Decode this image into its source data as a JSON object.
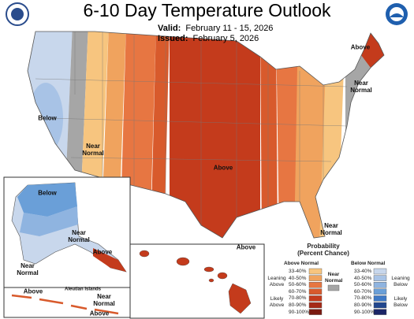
{
  "header": {
    "title": "6-10 Day Temperature Outlook",
    "valid_label": "Valid:",
    "valid_value": "February 11 - 15, 2026",
    "issued_label": "Issued:",
    "issued_value": "February 5, 2026"
  },
  "map_labels": [
    "Above",
    "Near Normal",
    "Below",
    "Near Normal",
    "Above",
    "Near Normal",
    "Below",
    "Near Normal",
    "Above",
    "Near Normal",
    "Above",
    "Aleutian Islands",
    "Near Normal",
    "Above",
    "Above"
  ],
  "legend": {
    "title": "Probability",
    "subtitle": "(Percent Chance)",
    "above": {
      "name": "Above Normal",
      "ranges": [
        "33-40%",
        "40-50%",
        "50-60%",
        "60-70%",
        "70-80%",
        "80-90%",
        "90-100%"
      ],
      "colors": [
        "#f7c57f",
        "#f0a35e",
        "#e77642",
        "#d85a2c",
        "#c43b1c",
        "#a52a17",
        "#7a1a10"
      ]
    },
    "below": {
      "name": "Below Normal",
      "ranges": [
        "33-40%",
        "40-50%",
        "50-60%",
        "60-70%",
        "70-80%",
        "80-90%",
        "90-100%"
      ],
      "colors": [
        "#c8d7ec",
        "#a8c3e6",
        "#8fb4e0",
        "#6a9fd8",
        "#3e79c6",
        "#21468e",
        "#1b2566"
      ]
    },
    "near": {
      "name": "Near Normal",
      "color": "#a6a6a6"
    },
    "leaning_above": "Leaning Above",
    "likely_above": "Likely Above",
    "leaning_below": "Leaning Below",
    "likely_below": "Likely Below"
  }
}
